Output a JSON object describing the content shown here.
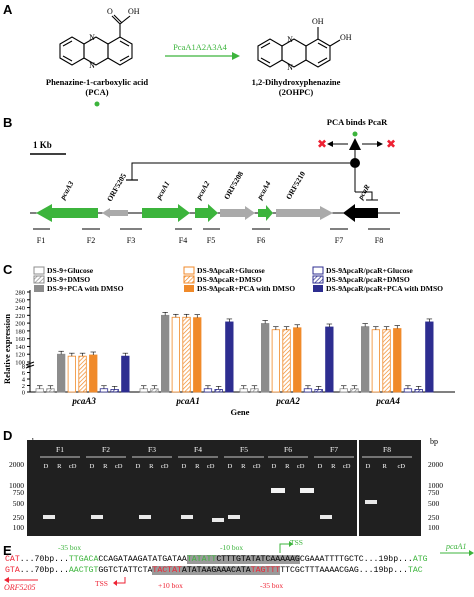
{
  "panelA": {
    "letter": "A",
    "left_name": "Phenazine-1-carboxylic acid",
    "left_abbr": "(PCA)",
    "enzyme": "PcaA1A2A3A4",
    "right_name": "1,2-Dihydroxyphenazine",
    "right_abbr": "(2OHPC)",
    "cooh_o": "O",
    "cooh_oh": "OH",
    "oh1": "OH",
    "oh2": "OH",
    "n_top": "N",
    "n_bot": "N"
  },
  "panelB": {
    "letter": "B",
    "scale": "1 Kb",
    "binds_label": "PCA binds PcaR",
    "genes": [
      "pcaA3",
      "ORF5205",
      "pcaA1",
      "pcaA2",
      "ORF5208",
      "pcaA4",
      "ORF5210",
      "pcaR"
    ],
    "fragments": [
      "F1",
      "F2",
      "F3",
      "F4",
      "F5",
      "F6",
      "F7",
      "F8"
    ]
  },
  "panelC": {
    "letter": "C",
    "ylabel": "Relative expression",
    "xlabel": "Gene",
    "legend": [
      "DS-9+Glucose",
      "DS-9ΔpcaR+Glucose",
      "DS-9ΔpcaR/pcaR+Glucose",
      "DS-9+DMSO",
      "DS-9ΔpcaR+DMSO",
      "DS-9ΔpcaR/pcaR+DMSO",
      "DS-9+PCA with DMSO",
      "DS-9ΔpcaR+PCA with DMSO",
      "DS-9ΔpcaR/pcaR+PCA with DMSO"
    ],
    "yticks": [
      "0",
      "2",
      "4",
      "6",
      "8",
      "100",
      "120",
      "140",
      "160",
      "180",
      "200",
      "220",
      "240",
      "260",
      "280"
    ]
  },
  "chart_data": {
    "type": "bar",
    "categories": [
      "pcaA3",
      "pcaA1",
      "pcaA2",
      "pcaA4"
    ],
    "xlabel": "Gene",
    "ylabel": "Relative expression",
    "series": [
      {
        "name": "DS-9+Glucose",
        "values": [
          1,
          1,
          1,
          1
        ]
      },
      {
        "name": "DS-9+DMSO",
        "values": [
          1,
          1,
          1,
          1
        ]
      },
      {
        "name": "DS-9+PCA with DMSO",
        "values": [
          120,
          220,
          199,
          191
        ]
      },
      {
        "name": "DS-9ΔpcaR+Glucose",
        "values": [
          115,
          215,
          183,
          183
        ]
      },
      {
        "name": "DS-9ΔpcaR+DMSO",
        "values": [
          115,
          215,
          183,
          183
        ]
      },
      {
        "name": "DS-9ΔpcaR+PCA with DMSO",
        "values": [
          118,
          214,
          188,
          186
        ]
      },
      {
        "name": "DS-9ΔpcaR/pcaR+Glucose",
        "values": [
          1,
          1,
          1,
          1
        ]
      },
      {
        "name": "DS-9ΔpcaR/pcaR+DMSO",
        "values": [
          0.8,
          0.8,
          0.8,
          0.8
        ]
      },
      {
        "name": "DS-9ΔpcaR/pcaR+PCA with DMSO",
        "values": [
          115,
          203,
          190,
          203
        ]
      }
    ],
    "colors": {
      "ds9": "#8c8c8c",
      "dpcar": "#f08a2a",
      "comp": "#2d2d90"
    }
  },
  "panelD": {
    "letter": "D",
    "unit": "bp",
    "ladder_left": [
      "2000",
      "1000",
      "750",
      "500",
      "250",
      "100"
    ],
    "ladder_right": [
      "2000",
      "1000",
      "750",
      "500",
      "250",
      "100"
    ],
    "groups": [
      "F1",
      "F2",
      "F3",
      "F4",
      "F5",
      "F6",
      "F7",
      "F8"
    ],
    "lanes": [
      "D",
      "R",
      "cD"
    ]
  },
  "panelE": {
    "letter": "E",
    "box35_top": "-35 box",
    "box10_top": "-10 box",
    "tss_top": "TSS",
    "pcaA1_label": "pcaA1",
    "orf_label": "ORF5205",
    "tss_bot": "TSS",
    "box10_bot": "+10 box",
    "box35_bot": "-35 box",
    "top": {
      "cat": "CAT",
      "pre": "...70bp...",
      "b35": "TTGACA",
      "mid1": "CCAGATAAGATATGATAA",
      "b10": "TATATT",
      "mid2": "CTTTGTATATCAAAAAG",
      "tail": "CGAAATTTTGCTC...19bp...",
      "atg": "ATG"
    },
    "bot": {
      "gta": "GTA",
      "pre": "...70bp...",
      "b35": "AACTGT",
      "mid1": "GGTCTATTCTA",
      "b10": "TACTAT",
      "mid2": "ATATAAGAAACATA",
      "b35b": "TAGTTT",
      "tail": "TTCGCTTTAAAACGAG...19bp...",
      "tac": "TAC"
    }
  }
}
